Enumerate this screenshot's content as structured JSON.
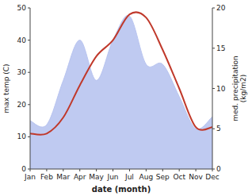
{
  "chart_data": {
    "type": "line",
    "x_label": "date (month)",
    "y_label": "max temp (C)",
    "y2_label": "med. precipitation\n(kg/m2)",
    "categories": [
      "Jan",
      "Feb",
      "Mar",
      "Apr",
      "May",
      "Jun",
      "Jul",
      "Aug",
      "Sep",
      "Oct",
      "Nov",
      "Dec"
    ],
    "ylim": [
      0,
      50
    ],
    "yticks": [
      0,
      10,
      20,
      30,
      40,
      50
    ],
    "y2lim": [
      0,
      20
    ],
    "y2ticks": [
      0,
      5,
      10,
      15,
      20
    ],
    "grid": false,
    "series": [
      {
        "type": "area",
        "axis": "y2",
        "color": "#b8c4f0",
        "values": [
          6,
          5.5,
          11,
          16,
          11,
          16,
          19,
          13,
          13,
          9,
          5,
          6.5
        ]
      },
      {
        "type": "line",
        "color": "#c0392b",
        "values": [
          11,
          11,
          16,
          26,
          35,
          40,
          48,
          47,
          37,
          25,
          13,
          13
        ]
      }
    ]
  }
}
